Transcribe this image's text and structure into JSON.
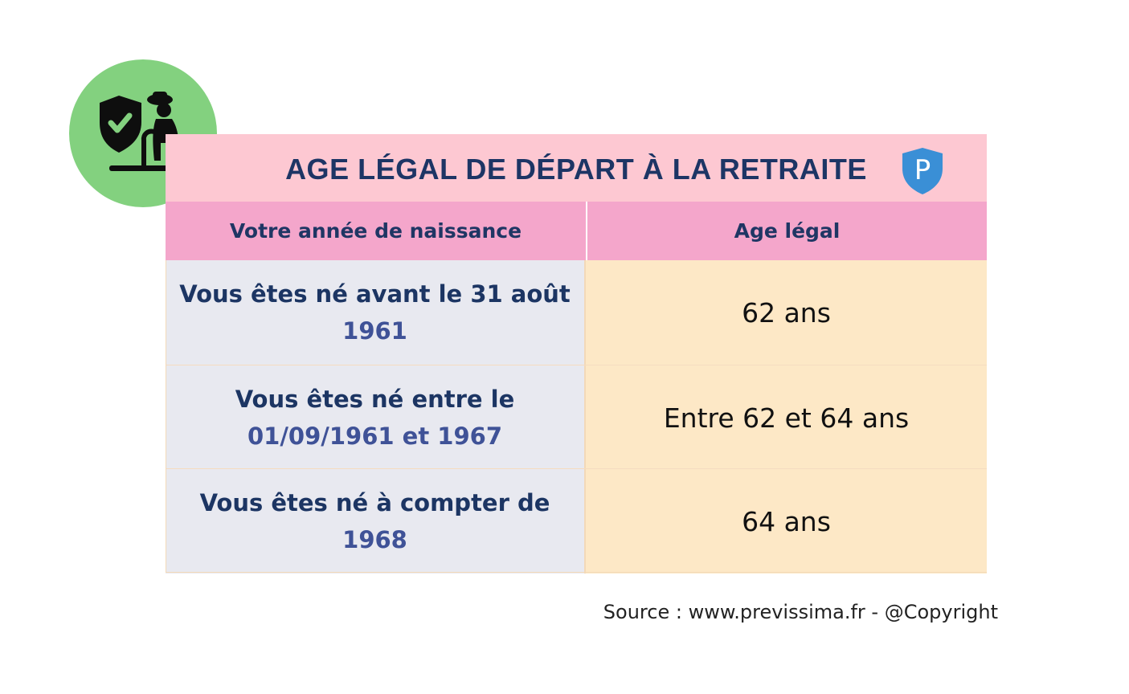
{
  "title": "AGE LÉGAL DE DÉPART À LA RETRAITE",
  "logo": {
    "letter": "P",
    "color": "#3a8fd6"
  },
  "badge": {
    "icon": "retiree-shield-icon",
    "color": "#83d17f"
  },
  "table": {
    "headers": [
      "Votre année de naissance",
      "Age légal"
    ],
    "rows": [
      {
        "birth_prefix": "Vous êtes né avant le 31 août",
        "birth_highlight": "1961",
        "legal_age": "62 ans"
      },
      {
        "birth_prefix": "Vous êtes né entre le",
        "birth_highlight": "01/09/1961 et 1967",
        "legal_age": "Entre 62 et 64 ans"
      },
      {
        "birth_prefix": "Vous êtes né à compter de",
        "birth_highlight": "1968",
        "legal_age": "64 ans"
      }
    ]
  },
  "source": "Source : www.previssima.fr - @Copyright"
}
